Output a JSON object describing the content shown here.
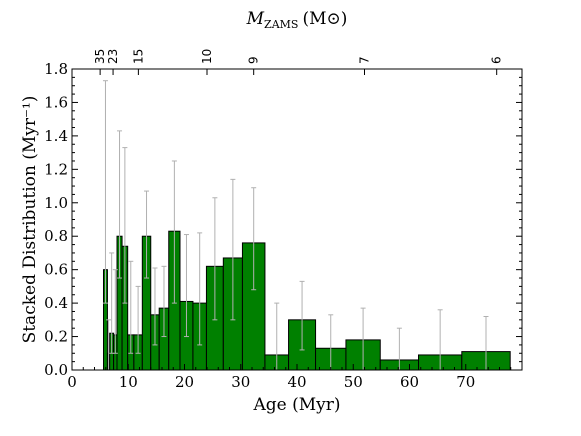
{
  "chart_data": {
    "type": "bar",
    "xlabel": "Age (Myr)",
    "ylabel": "Stacked Distribution (Myr⁻¹)",
    "top_axis_label": "M_ZAMS (M⊙)",
    "top_axis_label_main": "M",
    "top_axis_label_sub": "ZAMS",
    "top_axis_label_unit": "(M⊙)",
    "xlim": [
      0,
      80
    ],
    "ylim": [
      0,
      1.8
    ],
    "xticks": [
      0,
      10,
      20,
      30,
      40,
      50,
      60,
      70
    ],
    "yticks": [
      0.0,
      0.2,
      0.4,
      0.6,
      0.8,
      1.0,
      1.2,
      1.4,
      1.6,
      1.8
    ],
    "top_ticks": [
      {
        "label": "35",
        "age": 5.0
      },
      {
        "label": "23",
        "age": 7.3
      },
      {
        "label": "15",
        "age": 11.8
      },
      {
        "label": "10",
        "age": 24.0
      },
      {
        "label": "9",
        "age": 32.3
      },
      {
        "label": "7",
        "age": 52.0
      },
      {
        "label": "6",
        "age": 75.5
      }
    ],
    "grid": false,
    "bar_color": "#008000",
    "error_color": "#b0b0b0",
    "bins": [
      {
        "x0": 5.6,
        "x1": 6.3,
        "value": 0.6,
        "err_low": 0.4,
        "err_high": 1.73
      },
      {
        "x0": 6.3,
        "x1": 6.7,
        "value": 0.1,
        "err_low": 0.0,
        "err_high": 0.3
      },
      {
        "x0": 6.7,
        "x1": 7.4,
        "value": 0.22,
        "err_low": 0.1,
        "err_high": 0.7
      },
      {
        "x0": 7.4,
        "x1": 8.0,
        "value": 0.21,
        "err_low": 0.1,
        "err_high": 0.6
      },
      {
        "x0": 8.0,
        "x1": 8.9,
        "value": 0.8,
        "err_low": 0.55,
        "err_high": 1.43
      },
      {
        "x0": 8.9,
        "x1": 9.9,
        "value": 0.74,
        "err_low": 0.4,
        "err_high": 1.33
      },
      {
        "x0": 9.9,
        "x1": 11.0,
        "value": 0.21,
        "err_low": 0.1,
        "err_high": 0.65
      },
      {
        "x0": 11.0,
        "x1": 12.5,
        "value": 0.21,
        "err_low": 0.1,
        "err_high": 0.5
      },
      {
        "x0": 12.5,
        "x1": 14.0,
        "value": 0.8,
        "err_low": 0.55,
        "err_high": 1.07
      },
      {
        "x0": 14.0,
        "x1": 15.5,
        "value": 0.33,
        "err_low": 0.15,
        "err_high": 0.61
      },
      {
        "x0": 15.5,
        "x1": 17.2,
        "value": 0.37,
        "err_low": 0.2,
        "err_high": 0.62
      },
      {
        "x0": 17.2,
        "x1": 19.2,
        "value": 0.83,
        "err_low": 0.4,
        "err_high": 1.25
      },
      {
        "x0": 19.2,
        "x1": 21.5,
        "value": 0.41,
        "err_low": 0.2,
        "err_high": 0.81
      },
      {
        "x0": 21.5,
        "x1": 23.9,
        "value": 0.4,
        "err_low": 0.15,
        "err_high": 0.82
      },
      {
        "x0": 23.9,
        "x1": 26.9,
        "value": 0.62,
        "err_low": 0.3,
        "err_high": 1.03
      },
      {
        "x0": 26.9,
        "x1": 30.3,
        "value": 0.67,
        "err_low": 0.3,
        "err_high": 1.14
      },
      {
        "x0": 30.3,
        "x1": 34.3,
        "value": 0.76,
        "err_low": 0.48,
        "err_high": 1.09
      },
      {
        "x0": 34.3,
        "x1": 38.5,
        "value": 0.09,
        "err_low": 0.0,
        "err_high": 0.4
      },
      {
        "x0": 38.5,
        "x1": 43.3,
        "value": 0.3,
        "err_low": 0.12,
        "err_high": 0.53
      },
      {
        "x0": 43.3,
        "x1": 48.7,
        "value": 0.13,
        "err_low": 0.0,
        "err_high": 0.33
      },
      {
        "x0": 48.7,
        "x1": 54.8,
        "value": 0.18,
        "err_low": 0.0,
        "err_high": 0.37
      },
      {
        "x0": 54.8,
        "x1": 61.6,
        "value": 0.06,
        "err_low": 0.0,
        "err_high": 0.25
      },
      {
        "x0": 61.6,
        "x1": 69.3,
        "value": 0.09,
        "err_low": 0.0,
        "err_high": 0.36
      },
      {
        "x0": 69.3,
        "x1": 77.9,
        "value": 0.11,
        "err_low": 0.0,
        "err_high": 0.32
      }
    ]
  }
}
